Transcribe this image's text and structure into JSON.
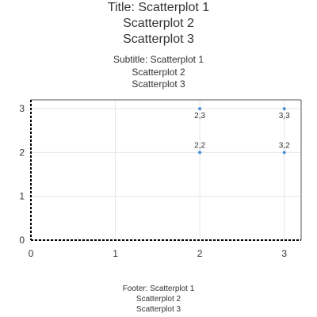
{
  "title": [
    "Title: Scatterplot 1",
    "Scatterplot 2",
    "Scatterplot 3"
  ],
  "subtitle": [
    "Subtitle: Scatterplot 1",
    "Scatterplot 2",
    "Scatterplot 3"
  ],
  "footer": [
    "Footer: Scatterplot 1",
    "Scatterplot 2",
    "Scatterplot 3"
  ],
  "chart_data": {
    "type": "scatter",
    "title": "Title: Scatterplot 1 Scatterplot 2 Scatterplot 3",
    "subtitle": "Subtitle: Scatterplot 1 Scatterplot 2 Scatterplot 3",
    "xlabel": "",
    "ylabel": "",
    "xlim": [
      0,
      3.2
    ],
    "ylim": [
      0,
      3.2
    ],
    "xticks": [
      0,
      1,
      2,
      3
    ],
    "yticks": [
      0,
      1,
      2,
      3
    ],
    "grid": true,
    "series": [
      {
        "color": "#4a90d9",
        "points": [
          {
            "x": 2,
            "y": 3,
            "label": "2,3"
          },
          {
            "x": 3,
            "y": 3,
            "label": "3,3"
          },
          {
            "x": 2,
            "y": 2,
            "label": "2,2"
          },
          {
            "x": 3,
            "y": 2,
            "label": "3,2"
          }
        ]
      }
    ]
  }
}
